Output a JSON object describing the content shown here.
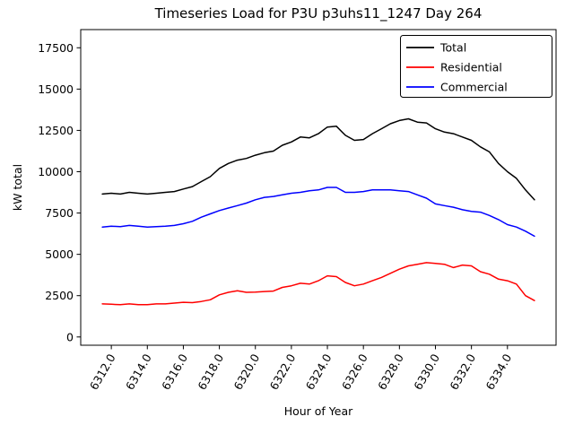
{
  "chart_data": {
    "type": "line",
    "title": "Timeseries Load for P3U p3uhs11_1247  Day 264",
    "xlabel": "Hour of Year",
    "ylabel": "kW total",
    "grid": false,
    "legend_position": "upper right",
    "xlim": [
      6310.3,
      6336.7
    ],
    "ylim": [
      -500,
      18600
    ],
    "xticks": [
      6312,
      6314,
      6316,
      6318,
      6320,
      6322,
      6324,
      6326,
      6328,
      6330,
      6332,
      6334
    ],
    "xtick_labels": [
      "6312.0",
      "6314.0",
      "6316.0",
      "6318.0",
      "6320.0",
      "6322.0",
      "6324.0",
      "6326.0",
      "6328.0",
      "6330.0",
      "6332.0",
      "6334.0"
    ],
    "yticks": [
      0,
      2500,
      5000,
      7500,
      10000,
      12500,
      15000,
      17500
    ],
    "ytick_labels": [
      "0",
      "2500",
      "5000",
      "7500",
      "10000",
      "12500",
      "15000",
      "17500"
    ],
    "x": [
      6311.5,
      6312.0,
      6312.5,
      6313.0,
      6313.5,
      6314.0,
      6314.5,
      6315.0,
      6315.5,
      6316.0,
      6316.5,
      6317.0,
      6317.5,
      6318.0,
      6318.5,
      6319.0,
      6319.5,
      6320.0,
      6320.5,
      6321.0,
      6321.5,
      6322.0,
      6322.5,
      6323.0,
      6323.5,
      6324.0,
      6324.5,
      6325.0,
      6325.5,
      6326.0,
      6326.5,
      6327.0,
      6327.5,
      6328.0,
      6328.5,
      6329.0,
      6329.5,
      6330.0,
      6330.5,
      6331.0,
      6331.5,
      6332.0,
      6332.5,
      6333.0,
      6333.5,
      6334.0,
      6334.5,
      6335.0,
      6335.5
    ],
    "series": [
      {
        "name": "Total",
        "color": "#000000",
        "values": [
          8650,
          8700,
          8650,
          8750,
          8700,
          8650,
          8700,
          8750,
          8800,
          8950,
          9100,
          9400,
          9700,
          10200,
          10500,
          10700,
          10800,
          11000,
          11150,
          11250,
          11600,
          11800,
          12100,
          12050,
          12300,
          12700,
          12750,
          12200,
          11900,
          11950,
          12300,
          12600,
          12900,
          13100,
          13200,
          13000,
          12950,
          12600,
          12400,
          12300,
          12100,
          11900,
          11500,
          11200,
          10500,
          10000,
          9600,
          8900,
          8300
        ]
      },
      {
        "name": "Residential",
        "color": "#ff0000",
        "values": [
          2000,
          1980,
          1950,
          2000,
          1960,
          1950,
          2000,
          2000,
          2050,
          2100,
          2080,
          2150,
          2250,
          2550,
          2700,
          2800,
          2700,
          2720,
          2750,
          2780,
          3000,
          3100,
          3250,
          3200,
          3400,
          3700,
          3650,
          3300,
          3100,
          3200,
          3400,
          3600,
          3850,
          4100,
          4300,
          4400,
          4500,
          4450,
          4400,
          4200,
          4350,
          4300,
          3950,
          3800,
          3500,
          3400,
          3200,
          2500,
          2200
        ]
      },
      {
        "name": "Commercial",
        "color": "#0000ff",
        "values": [
          6650,
          6700,
          6680,
          6750,
          6700,
          6650,
          6680,
          6700,
          6750,
          6850,
          7000,
          7250,
          7450,
          7650,
          7800,
          7950,
          8100,
          8300,
          8450,
          8500,
          8600,
          8700,
          8750,
          8850,
          8900,
          9050,
          9050,
          8750,
          8750,
          8800,
          8900,
          8900,
          8900,
          8850,
          8800,
          8600,
          8400,
          8050,
          7950,
          7850,
          7700,
          7600,
          7550,
          7350,
          7100,
          6800,
          6650,
          6400,
          6100
        ]
      }
    ]
  }
}
